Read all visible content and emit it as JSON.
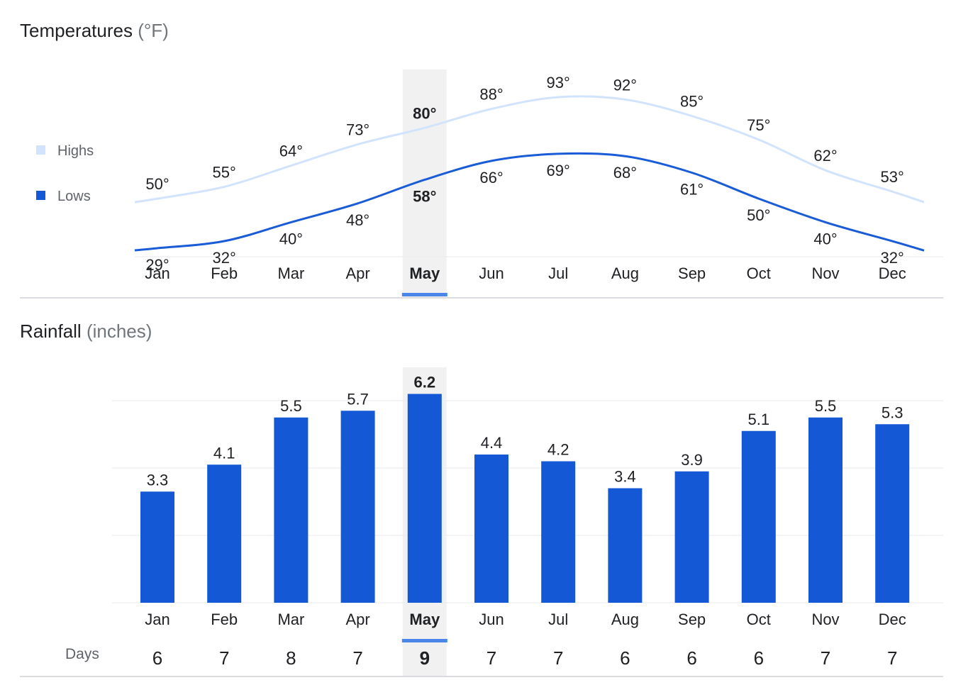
{
  "temperatures": {
    "title": "Temperatures",
    "unit": "(°F)",
    "legend": {
      "highs": "Highs",
      "lows": "Lows"
    }
  },
  "rainfall": {
    "title": "Rainfall",
    "unit": "(inches)",
    "days_label": "Days"
  },
  "selected_month": "May",
  "colors": {
    "highs": "#d2e3fc",
    "lows": "#1a5bd6",
    "bars": "#1558d6",
    "selected_band": "#f1f1f1",
    "selected_indicator": "#4a86e8"
  },
  "chart_data": [
    {
      "type": "line",
      "title": "Temperatures (°F)",
      "categories": [
        "Jan",
        "Feb",
        "Mar",
        "Apr",
        "May",
        "Jun",
        "Jul",
        "Aug",
        "Sep",
        "Oct",
        "Nov",
        "Dec"
      ],
      "series": [
        {
          "name": "Highs",
          "values": [
            50,
            55,
            64,
            73,
            80,
            88,
            93,
            92,
            85,
            75,
            62,
            53
          ],
          "labels": [
            "50°",
            "55°",
            "64°",
            "73°",
            "80°",
            "88°",
            "93°",
            "92°",
            "85°",
            "75°",
            "62°",
            "53°"
          ]
        },
        {
          "name": "Lows",
          "values": [
            29,
            32,
            40,
            48,
            58,
            66,
            69,
            68,
            61,
            50,
            40,
            32
          ],
          "labels": [
            "29°",
            "32°",
            "40°",
            "48°",
            "58°",
            "66°",
            "69°",
            "68°",
            "61°",
            "50°",
            "40°",
            "32°"
          ]
        }
      ],
      "legend": "left"
    },
    {
      "type": "bar",
      "title": "Rainfall (inches)",
      "categories": [
        "Jan",
        "Feb",
        "Mar",
        "Apr",
        "May",
        "Jun",
        "Jul",
        "Aug",
        "Sep",
        "Oct",
        "Nov",
        "Dec"
      ],
      "values": [
        3.3,
        4.1,
        5.5,
        5.7,
        6.2,
        4.4,
        4.2,
        3.4,
        3.9,
        5.1,
        5.5,
        5.3
      ],
      "labels": [
        "3.3",
        "4.1",
        "5.5",
        "5.7",
        "6.2",
        "4.4",
        "4.2",
        "3.4",
        "3.9",
        "5.1",
        "5.5",
        "5.3"
      ],
      "days": [
        6,
        7,
        8,
        7,
        9,
        7,
        7,
        6,
        6,
        6,
        7,
        7
      ],
      "ylim": [
        0,
        6
      ],
      "grid": true
    }
  ]
}
